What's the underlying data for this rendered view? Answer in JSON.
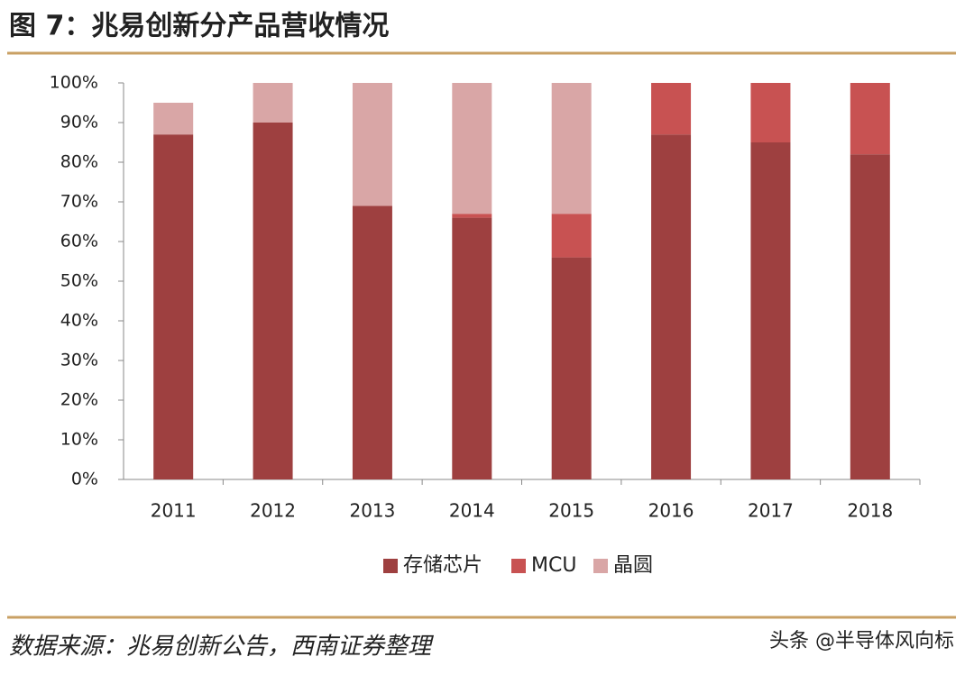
{
  "chart_data": {
    "type": "stacked_bar",
    "title": "图 7：兆易创新分产品营收情况",
    "source": "数据来源：兆易创新公告，西南证券整理",
    "watermark": "头条 @半导体风向标",
    "categories": [
      "2011",
      "2012",
      "2013",
      "2014",
      "2015",
      "2016",
      "2017",
      "2018"
    ],
    "series": [
      {
        "name": "存储芯片",
        "color": "#9e4040",
        "values": [
          87,
          90,
          69,
          66,
          56,
          87,
          85,
          82
        ]
      },
      {
        "name": "MCU",
        "color": "#c85252",
        "values": [
          0,
          0,
          0,
          1,
          11,
          13,
          15,
          18
        ]
      },
      {
        "name": "晶圆",
        "color": "#d9a6a6",
        "values": [
          8,
          10,
          31,
          33,
          33,
          0,
          0,
          0
        ]
      }
    ],
    "ylim": [
      0,
      100
    ],
    "yticks": [
      {
        "value": 0,
        "label": "0%"
      },
      {
        "value": 10,
        "label": "10%"
      },
      {
        "value": 20,
        "label": "20%"
      },
      {
        "value": 30,
        "label": "30%"
      },
      {
        "value": 40,
        "label": "40%"
      },
      {
        "value": 50,
        "label": "50%"
      },
      {
        "value": 60,
        "label": "60%"
      },
      {
        "value": 70,
        "label": "70%"
      },
      {
        "value": 80,
        "label": "80%"
      },
      {
        "value": 90,
        "label": "90%"
      },
      {
        "value": 100,
        "label": "100%"
      }
    ],
    "grid": false,
    "legend": "bottom"
  }
}
